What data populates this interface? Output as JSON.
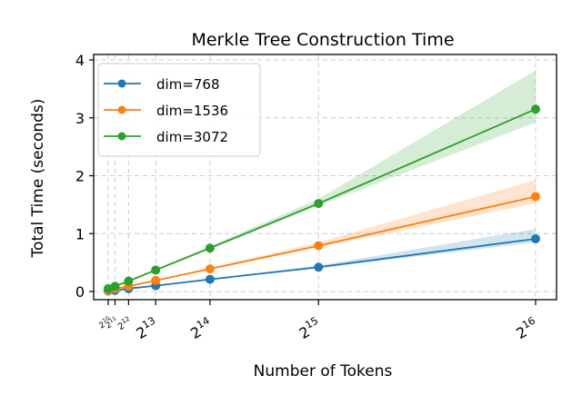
{
  "chart_data": {
    "type": "line",
    "title": "Merkle Tree Construction Time",
    "xlabel": "Number of Tokens",
    "ylabel": "Total Time (seconds)",
    "x": [
      1024,
      2048,
      4096,
      8192,
      16384,
      32768,
      65536
    ],
    "x_tick_labels": [
      "2^10",
      "2^11",
      "2^12",
      "2^13",
      "2^14",
      "2^15",
      "2^16"
    ],
    "y_ticks": [
      0,
      1,
      2,
      3,
      4
    ],
    "ylim": [
      -0.12,
      4.0
    ],
    "grid": true,
    "legend_position": "upper left",
    "series": [
      {
        "name": "dim=768",
        "color": "#1f77b4",
        "values": [
          0.01,
          0.02,
          0.05,
          0.1,
          0.21,
          0.42,
          0.91
        ],
        "band_lo": [
          0.0,
          0.01,
          0.04,
          0.09,
          0.2,
          0.4,
          0.85
        ],
        "band_hi": [
          0.02,
          0.03,
          0.06,
          0.11,
          0.22,
          0.45,
          1.08
        ]
      },
      {
        "name": "dim=1536",
        "color": "#ff7f0e",
        "values": [
          0.02,
          0.05,
          0.09,
          0.19,
          0.39,
          0.79,
          1.64
        ],
        "band_lo": [
          0.01,
          0.04,
          0.08,
          0.18,
          0.38,
          0.76,
          1.52
        ],
        "band_hi": [
          0.03,
          0.06,
          0.1,
          0.2,
          0.41,
          0.85,
          1.93
        ]
      },
      {
        "name": "dim=3072",
        "color": "#2ca02c",
        "values": [
          0.05,
          0.09,
          0.18,
          0.37,
          0.75,
          1.52,
          3.15
        ],
        "band_lo": [
          0.04,
          0.08,
          0.17,
          0.36,
          0.73,
          1.48,
          2.92
        ],
        "band_hi": [
          0.06,
          0.1,
          0.19,
          0.39,
          0.78,
          1.6,
          3.82
        ]
      }
    ]
  }
}
